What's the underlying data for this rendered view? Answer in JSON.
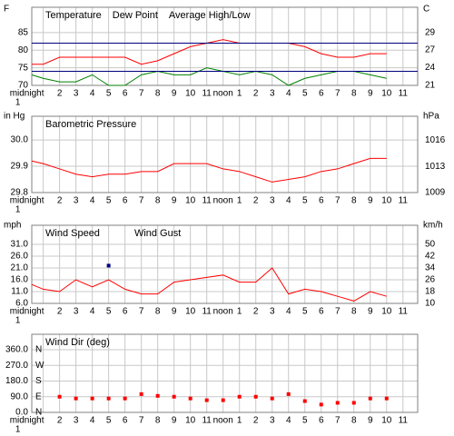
{
  "chart_data": [
    {
      "type": "line",
      "y_label": "F",
      "y2_label": "C",
      "x": [
        0.3,
        1,
        2,
        3,
        4,
        5,
        6,
        7,
        8,
        9,
        10,
        11,
        12,
        13,
        14,
        15,
        16,
        17,
        18,
        19,
        20,
        21,
        22
      ],
      "xlim": [
        0.3,
        23.9
      ],
      "xticks": [
        {
          "value": 0,
          "label": "midnight"
        },
        1,
        2,
        3,
        4,
        5,
        6,
        7,
        8,
        9,
        10,
        11,
        {
          "value": 12,
          "label": "noon"
        },
        {
          "value": 13,
          "label": "1"
        },
        {
          "value": 14,
          "label": "2"
        },
        {
          "value": 15,
          "label": "3"
        },
        {
          "value": 16,
          "label": "4"
        },
        {
          "value": 17,
          "label": "5"
        },
        {
          "value": 18,
          "label": "6"
        },
        {
          "value": 19,
          "label": "7"
        },
        {
          "value": 20,
          "label": "8"
        },
        {
          "value": 21,
          "label": "9"
        },
        {
          "value": 22,
          "label": "10"
        },
        {
          "value": 23,
          "label": "11"
        }
      ],
      "ylim": [
        70,
        92.2
      ],
      "yticks": [
        70,
        75,
        80,
        85
      ],
      "y2lim": [
        21.1,
        33.4
      ],
      "y2ticks": [
        {
          "value": 21.1,
          "label": "21"
        },
        {
          "value": 23.9,
          "label": "24"
        },
        {
          "value": 26.7,
          "label": "27"
        },
        {
          "value": 29.4,
          "label": "29"
        }
      ],
      "grid": true,
      "series": [
        {
          "name": "Temperature",
          "color": "#ff0000",
          "values": [
            76,
            76,
            78,
            78,
            78,
            78,
            78,
            76,
            77,
            79,
            81,
            82,
            83,
            82,
            82,
            82,
            82,
            81,
            79,
            78,
            78,
            79,
            79
          ]
        },
        {
          "name": "Dew Point",
          "color": "#008000",
          "values": [
            73,
            72,
            71,
            71,
            73,
            70,
            70,
            73,
            74,
            73,
            73,
            75,
            74,
            73,
            74,
            73,
            70,
            72,
            73,
            74,
            74,
            73,
            72
          ]
        }
      ],
      "reference_lines": {
        "name": "Average High/Low",
        "color": "#000080",
        "values": [
          82,
          74
        ]
      }
    },
    {
      "type": "line",
      "y_label": "in Hg",
      "y2_label": "hPa",
      "x": [
        0.3,
        1,
        2,
        3,
        4,
        5,
        6,
        7,
        8,
        9,
        10,
        11,
        12,
        13,
        14,
        15,
        16,
        17,
        18,
        19,
        20,
        21,
        22
      ],
      "xlim": [
        0.3,
        23.9
      ],
      "xticks": [
        {
          "value": 0,
          "label": "midnight"
        },
        1,
        2,
        3,
        4,
        5,
        6,
        7,
        8,
        9,
        10,
        11,
        {
          "value": 12,
          "label": "noon"
        },
        {
          "value": 13,
          "label": "1"
        },
        {
          "value": 14,
          "label": "2"
        },
        {
          "value": 15,
          "label": "3"
        },
        {
          "value": 16,
          "label": "4"
        },
        {
          "value": 17,
          "label": "5"
        },
        {
          "value": 18,
          "label": "6"
        },
        {
          "value": 19,
          "label": "7"
        },
        {
          "value": 20,
          "label": "8"
        },
        {
          "value": 21,
          "label": "9"
        },
        {
          "value": 22,
          "label": "10"
        },
        {
          "value": 23,
          "label": "11"
        }
      ],
      "ylim": [
        29.8,
        30.09
      ],
      "yticks": [
        {
          "value": 29.8,
          "label": "29.8"
        },
        29.9,
        {
          "value": 30.0,
          "label": "30.0"
        }
      ],
      "y2lim": [
        1009.1,
        1019.0
      ],
      "y2ticks": [
        {
          "value": 1009.1,
          "label": "1009"
        },
        {
          "value": 1012.5,
          "label": "1013"
        },
        {
          "value": 1015.9,
          "label": "1016"
        }
      ],
      "grid": true,
      "series": [
        {
          "name": "Barometric Pressure",
          "color": "#ff0000",
          "values": [
            29.92,
            29.91,
            29.89,
            29.87,
            29.86,
            29.87,
            29.87,
            29.88,
            29.88,
            29.91,
            29.91,
            29.91,
            29.89,
            29.88,
            29.86,
            29.84,
            29.85,
            29.86,
            29.88,
            29.89,
            29.91,
            29.93,
            29.93
          ]
        }
      ]
    },
    {
      "type": "line",
      "y_label": "mph",
      "y2_label": "km/h",
      "x": [
        0.3,
        1,
        2,
        3,
        4,
        5,
        6,
        7,
        8,
        9,
        10,
        11,
        12,
        13,
        14,
        15,
        16,
        17,
        18,
        19,
        20,
        21,
        22
      ],
      "xlim": [
        0.3,
        23.9
      ],
      "xticks": [
        {
          "value": 0,
          "label": "midnight"
        },
        1,
        2,
        3,
        4,
        5,
        6,
        7,
        8,
        9,
        10,
        11,
        {
          "value": 12,
          "label": "noon"
        },
        {
          "value": 13,
          "label": "1"
        },
        {
          "value": 14,
          "label": "2"
        },
        {
          "value": 15,
          "label": "3"
        },
        {
          "value": 16,
          "label": "4"
        },
        {
          "value": 17,
          "label": "5"
        },
        {
          "value": 18,
          "label": "6"
        },
        {
          "value": 19,
          "label": "7"
        },
        {
          "value": 20,
          "label": "8"
        },
        {
          "value": 21,
          "label": "9"
        },
        {
          "value": 22,
          "label": "10"
        },
        {
          "value": 23,
          "label": "11"
        }
      ],
      "ylim": [
        6,
        39.1
      ],
      "yticks": [
        {
          "value": 6,
          "label": "6.0"
        },
        {
          "value": 11,
          "label": "11.0"
        },
        {
          "value": 16,
          "label": "16.0"
        },
        {
          "value": 21,
          "label": "21.0"
        },
        {
          "value": 26,
          "label": "26.0"
        },
        {
          "value": 31,
          "label": "31.0"
        }
      ],
      "y2lim": [
        9.66,
        62.9
      ],
      "y2ticks": [
        {
          "value": 9.7,
          "label": "10"
        },
        {
          "value": 17.7,
          "label": "18"
        },
        {
          "value": 25.7,
          "label": "26"
        },
        {
          "value": 33.8,
          "label": "34"
        },
        {
          "value": 41.8,
          "label": "42"
        },
        {
          "value": 49.9,
          "label": "50"
        }
      ],
      "grid": true,
      "series": [
        {
          "name": "Wind Speed",
          "color": "#ff0000",
          "values": [
            14,
            12,
            11,
            16,
            13,
            16,
            12,
            10,
            10,
            15,
            16,
            17,
            18,
            15,
            15,
            21,
            10,
            12,
            11,
            9,
            7,
            11,
            9
          ]
        },
        {
          "name": "Wind Gust",
          "color": "#000080",
          "marker": "square",
          "values": [
            null,
            null,
            null,
            null,
            null,
            22,
            null,
            null,
            null,
            null,
            null,
            null,
            null,
            null,
            null,
            null,
            null,
            null,
            null,
            null,
            null,
            null,
            null
          ]
        }
      ]
    },
    {
      "type": "scatter",
      "x": [
        0.3,
        1,
        2,
        3,
        4,
        5,
        6,
        7,
        8,
        9,
        10,
        11,
        12,
        13,
        14,
        15,
        16,
        17,
        18,
        19,
        20,
        21,
        22
      ],
      "xlim": [
        0.3,
        23.9
      ],
      "xticks": [
        {
          "value": 0,
          "label": "midnight"
        },
        1,
        2,
        3,
        4,
        5,
        6,
        7,
        8,
        9,
        10,
        11,
        {
          "value": 12,
          "label": "noon"
        },
        {
          "value": 13,
          "label": "1"
        },
        {
          "value": 14,
          "label": "2"
        },
        {
          "value": 15,
          "label": "3"
        },
        {
          "value": 16,
          "label": "4"
        },
        {
          "value": 17,
          "label": "5"
        },
        {
          "value": 18,
          "label": "6"
        },
        {
          "value": 19,
          "label": "7"
        },
        {
          "value": 20,
          "label": "8"
        },
        {
          "value": 21,
          "label": "9"
        },
        {
          "value": 22,
          "label": "10"
        },
        {
          "value": 23,
          "label": "11"
        }
      ],
      "ylim": [
        0,
        449
      ],
      "yticks": [
        {
          "value": 0,
          "label": "0.0"
        },
        {
          "value": 90,
          "label": "90.0"
        },
        {
          "value": 180,
          "label": "180.0"
        },
        {
          "value": 270,
          "label": "270.0"
        },
        {
          "value": 360,
          "label": "360.0"
        }
      ],
      "compass_labels": [
        {
          "value": 0,
          "label": "N"
        },
        {
          "value": 90,
          "label": "E"
        },
        {
          "value": 180,
          "label": "S"
        },
        {
          "value": 270,
          "label": "W"
        },
        {
          "value": 360,
          "label": "N"
        }
      ],
      "compass_color": "#ff0000",
      "grid": true,
      "series": [
        {
          "name": "Wind Dir (deg)",
          "color": "#ff0000",
          "marker": "square",
          "values": [
            null,
            null,
            90,
            80,
            80,
            80,
            80,
            105,
            95,
            90,
            80,
            70,
            70,
            90,
            90,
            80,
            105,
            65,
            45,
            55,
            55,
            80,
            80
          ]
        }
      ]
    }
  ]
}
